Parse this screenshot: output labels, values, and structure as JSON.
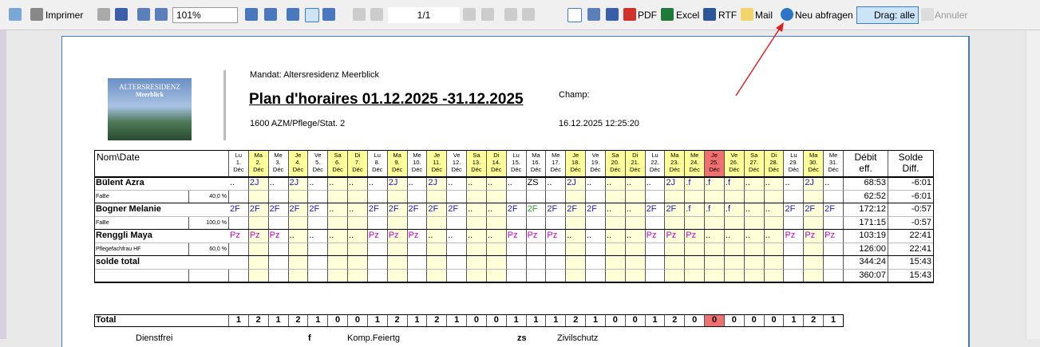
{
  "toolbar": {
    "print": "Imprimer",
    "zoom": "101%",
    "page": "1/1",
    "pdf": "PDF",
    "excel": "Excel",
    "rtf": "RTF",
    "mail": "Mail",
    "refresh": "Neu abfragen",
    "drag": "Drag: alle",
    "cancel": "Annuler"
  },
  "report": {
    "logo": {
      "line1": "ALTERSRESIDENZ",
      "line2": "Meerblick"
    },
    "mandate": "Mandat: Altersresidenz Meerblick",
    "title": "Plan d'horaires 01.12.2025 -31.12.2025",
    "unit": "1600 AZM/Pflege/Stat. 2",
    "field": "Champ:",
    "timestamp": "16.12.2025 12:25:20"
  },
  "table": {
    "name_header": "Nom\\Date",
    "debit_header": [
      "Débit",
      "eff."
    ],
    "solde_header": [
      "Solde",
      "Diff."
    ],
    "code_colors": {
      "2J": "#1a1acc",
      "2F": "#1a1acc",
      ".f": "#1a1acc",
      "Pz": "#cc00cc",
      "ZS": "#000000",
      "..": "#000000"
    },
    "days": [
      {
        "dow": "Lu",
        "day": "1.",
        "month": "Déc",
        "bg": "#ffffff"
      },
      {
        "dow": "Ma",
        "day": "2.",
        "month": "Déc",
        "bg": "#ffff99"
      },
      {
        "dow": "Me",
        "day": "3.",
        "month": "Déc",
        "bg": "#ffffff"
      },
      {
        "dow": "Je",
        "day": "4.",
        "month": "Déc",
        "bg": "#ffff99"
      },
      {
        "dow": "Ve",
        "day": "5.",
        "month": "Déc",
        "bg": "#ffffff"
      },
      {
        "dow": "Sa",
        "day": "6.",
        "month": "Déc",
        "bg": "#ffff99"
      },
      {
        "dow": "Di",
        "day": "7.",
        "month": "Déc",
        "bg": "#ffff99"
      },
      {
        "dow": "Lu",
        "day": "8.",
        "month": "Déc",
        "bg": "#ffffff"
      },
      {
        "dow": "Ma",
        "day": "9.",
        "month": "Déc",
        "bg": "#ffff99"
      },
      {
        "dow": "Me",
        "day": "10.",
        "month": "Déc",
        "bg": "#ffffff"
      },
      {
        "dow": "Je",
        "day": "11.",
        "month": "Déc",
        "bg": "#ffff99"
      },
      {
        "dow": "Ve",
        "day": "12.",
        "month": "Déc",
        "bg": "#ffffff"
      },
      {
        "dow": "Sa",
        "day": "13.",
        "month": "Déc",
        "bg": "#ffff99"
      },
      {
        "dow": "Di",
        "day": "14.",
        "month": "Déc",
        "bg": "#ffff99"
      },
      {
        "dow": "Lu",
        "day": "15.",
        "month": "Déc",
        "bg": "#ffffff"
      },
      {
        "dow": "Ma",
        "day": "16.",
        "month": "Déc",
        "bg": "#ffffff"
      },
      {
        "dow": "Me",
        "day": "17.",
        "month": "Déc",
        "bg": "#ffffff"
      },
      {
        "dow": "Je",
        "day": "18.",
        "month": "Déc",
        "bg": "#ffff99"
      },
      {
        "dow": "Ve",
        "day": "19.",
        "month": "Déc",
        "bg": "#ffffff"
      },
      {
        "dow": "Sa",
        "day": "20.",
        "month": "Déc",
        "bg": "#ffff99"
      },
      {
        "dow": "Di",
        "day": "21.",
        "month": "Déc",
        "bg": "#ffff99"
      },
      {
        "dow": "Lu",
        "day": "22.",
        "month": "Déc",
        "bg": "#ffffff"
      },
      {
        "dow": "Ma",
        "day": "23.",
        "month": "Déc",
        "bg": "#ffff99"
      },
      {
        "dow": "Me",
        "day": "24.",
        "month": "Déc",
        "bg": "#ffff99"
      },
      {
        "dow": "Je",
        "day": "25.",
        "month": "Déc",
        "bg": "#f07070"
      },
      {
        "dow": "Ve",
        "day": "26.",
        "month": "Déc",
        "bg": "#ffff99"
      },
      {
        "dow": "Sa",
        "day": "27.",
        "month": "Déc",
        "bg": "#ffff99"
      },
      {
        "dow": "Di",
        "day": "28.",
        "month": "Déc",
        "bg": "#ffff99"
      },
      {
        "dow": "Lu",
        "day": "29.",
        "month": "Déc",
        "bg": "#ffffff"
      },
      {
        "dow": "Ma",
        "day": "30.",
        "month": "Déc",
        "bg": "#ffff99"
      },
      {
        "dow": "Me",
        "day": "31.",
        "month": "Déc",
        "bg": "#ffffff"
      }
    ],
    "rows": [
      {
        "name": "Bülent Azra",
        "role": "FaBe",
        "percent": "40,0 %",
        "codes": [
          "..",
          "2J",
          "..",
          "2J",
          "..",
          "..",
          "..",
          "..",
          "2J",
          "..",
          "2J",
          "..",
          "..",
          "..",
          "..",
          "ZS",
          "..",
          "2J",
          "..",
          "..",
          "..",
          "..",
          "2J",
          ".f",
          ".f",
          ".f",
          "..",
          "..",
          "..",
          "2J",
          ".."
        ],
        "debit": [
          "68:53",
          "62:52"
        ],
        "solde": [
          "-6:01",
          "-6:01"
        ]
      },
      {
        "name": "Bogner Melanie",
        "role": "FaBe",
        "percent": "100,0 %",
        "codes": [
          "2F",
          "2F",
          "2F",
          "2F",
          "2F",
          "..",
          "..",
          "2F",
          "2F",
          "2F",
          "2F",
          "2F",
          "..",
          "..",
          "2F",
          {
            "text": "2F",
            "color": "#22aa22"
          },
          "2F",
          "2F",
          "2F",
          "..",
          "..",
          "2F",
          "2F",
          ".f",
          ".f",
          ".f",
          "..",
          "..",
          "2F",
          "2F",
          "2F"
        ],
        "debit": [
          "172:12",
          "171:15"
        ],
        "solde": [
          "-0:57",
          "-0:57"
        ]
      },
      {
        "name": "Renggli Maya",
        "role": "Pflegefachfrau HF",
        "percent": "60,0 %",
        "codes": [
          "Pz",
          "Pz",
          "Pz",
          "..",
          "..",
          "..",
          "..",
          "Pz",
          "Pz",
          "Pz",
          "..",
          "..",
          "..",
          "..",
          "Pz",
          "Pz",
          "Pz",
          "..",
          "..",
          "..",
          "..",
          "Pz",
          "Pz",
          "Pz",
          "..",
          "..",
          "..",
          "..",
          "Pz",
          "Pz",
          "Pz"
        ],
        "debit": [
          "103:19",
          "126:00"
        ],
        "solde": [
          "22:41",
          "22:41"
        ]
      },
      {
        "name": "solde total",
        "debit": [
          "344:24",
          "360:07"
        ],
        "solde": [
          "15:43",
          "15:43"
        ]
      }
    ],
    "total": {
      "label": "Total",
      "values": [
        1,
        2,
        1,
        2,
        1,
        0,
        0,
        1,
        2,
        1,
        2,
        1,
        0,
        0,
        1,
        1,
        1,
        2,
        1,
        0,
        0,
        1,
        2,
        0,
        0,
        0,
        0,
        0,
        1,
        2,
        1
      ]
    }
  },
  "legend": [
    {
      "label": "Dienstfrei",
      "code": "f"
    },
    {
      "label": "Komp.Feiertg",
      "code": "zs"
    },
    {
      "label": "Zivilschutz"
    }
  ]
}
